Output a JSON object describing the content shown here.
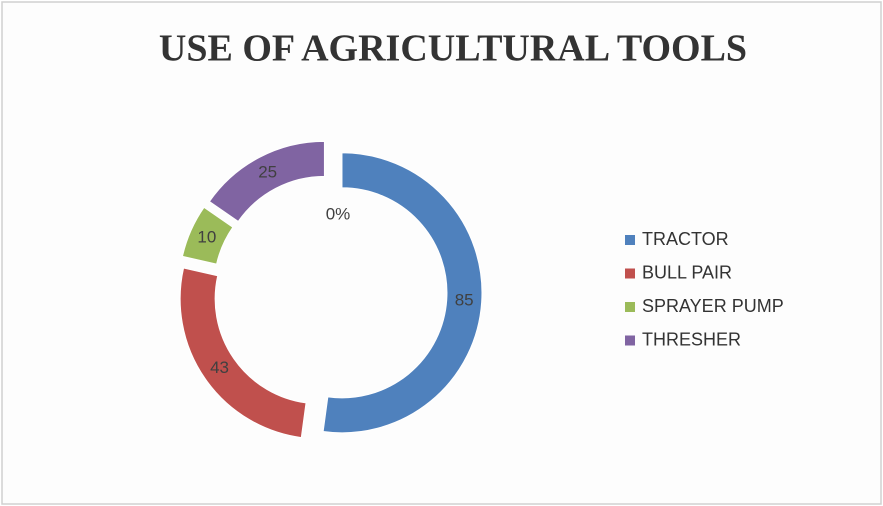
{
  "chart_data": {
    "type": "donut",
    "title": "USE OF AGRICULTURAL TOOLS",
    "categories": [
      "TRACTOR",
      "BULL PAIR",
      "SPRAYER PUMP",
      "THRESHER"
    ],
    "values": [
      85,
      43,
      10,
      25
    ],
    "colors": [
      "#4f81bd",
      "#c0504d",
      "#9bbb59",
      "#8064a2"
    ],
    "annotation": "0%",
    "legend": "right"
  }
}
